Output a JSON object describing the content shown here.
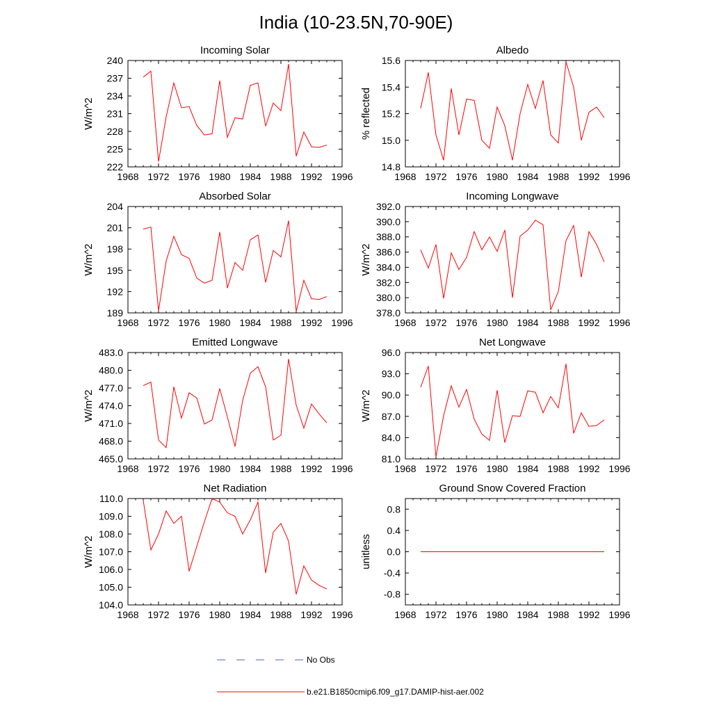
{
  "figure": {
    "title": "India (10-23.5N,70-90E)"
  },
  "colors": {
    "model": "#ff0000",
    "obs": "#4b5fbf",
    "axis": "#000000"
  },
  "legend": {
    "obs_label": "No Obs",
    "model_label": "b.e21.B1850cmip6.f09_g17.DAMIP-hist-aer.002"
  },
  "chart_data": [
    {
      "type": "line",
      "title": "Incoming Solar",
      "ylabel": "W/m^2",
      "xlim": [
        1968,
        1996
      ],
      "xticks": [
        "1968",
        "1972",
        "1976",
        "1980",
        "1984",
        "1988",
        "1992",
        "1996"
      ],
      "ylim": [
        222,
        240
      ],
      "yticks": [
        "222",
        "225",
        "228",
        "231",
        "234",
        "237",
        "240"
      ],
      "series": [
        {
          "x": [
            1970,
            1971,
            1972,
            1973,
            1974,
            1975,
            1976,
            1977,
            1978,
            1979,
            1980,
            1981,
            1982,
            1983,
            1984,
            1985,
            1986,
            1987,
            1988,
            1989,
            1990,
            1991,
            1992,
            1993,
            1994
          ],
          "y": [
            237.2,
            238.2,
            222.9,
            230.5,
            236.2,
            232.0,
            232.2,
            229.0,
            227.4,
            227.6,
            236.6,
            227.0,
            230.3,
            230.1,
            235.8,
            236.2,
            228.9,
            232.8,
            231.5,
            239.4,
            223.8,
            227.9,
            225.4,
            225.3,
            225.7
          ]
        }
      ]
    },
    {
      "type": "line",
      "title": "Albedo",
      "ylabel": "% reflected",
      "xlim": [
        1968,
        1996
      ],
      "xticks": [
        "1968",
        "1972",
        "1976",
        "1980",
        "1984",
        "1988",
        "1992",
        "1996"
      ],
      "ylim": [
        14.8,
        15.6
      ],
      "yticks": [
        "14.8",
        "15.0",
        "15.2",
        "15.4",
        "15.6"
      ],
      "series": [
        {
          "x": [
            1970,
            1971,
            1972,
            1973,
            1974,
            1975,
            1976,
            1977,
            1978,
            1979,
            1980,
            1981,
            1982,
            1983,
            1984,
            1985,
            1986,
            1987,
            1988,
            1989,
            1990,
            1991,
            1992,
            1993,
            1994
          ],
          "y": [
            15.24,
            15.51,
            15.04,
            14.85,
            15.39,
            15.04,
            15.31,
            15.3,
            15.0,
            14.94,
            15.25,
            15.11,
            14.85,
            15.2,
            15.42,
            15.24,
            15.45,
            15.04,
            14.98,
            15.59,
            15.4,
            15.0,
            15.21,
            15.25,
            15.17
          ]
        }
      ]
    },
    {
      "type": "line",
      "title": "Absorbed Solar",
      "ylabel": "W/m^2",
      "xlim": [
        1968,
        1996
      ],
      "xticks": [
        "1968",
        "1972",
        "1976",
        "1980",
        "1984",
        "1988",
        "1992",
        "1996"
      ],
      "ylim": [
        189,
        204
      ],
      "yticks": [
        "189",
        "192",
        "195",
        "198",
        "201",
        "204"
      ],
      "series": [
        {
          "x": [
            1970,
            1971,
            1972,
            1973,
            1974,
            1975,
            1976,
            1977,
            1978,
            1979,
            1980,
            1981,
            1982,
            1983,
            1984,
            1985,
            1986,
            1987,
            1988,
            1989,
            1990,
            1991,
            1992,
            1993,
            1994
          ],
          "y": [
            200.8,
            201.1,
            189.3,
            196.3,
            199.8,
            197.2,
            196.7,
            193.9,
            193.2,
            193.6,
            200.4,
            192.5,
            196.1,
            195.0,
            199.3,
            200.0,
            193.3,
            197.8,
            196.9,
            202.0,
            189.2,
            193.6,
            191.0,
            190.9,
            191.3
          ]
        }
      ]
    },
    {
      "type": "line",
      "title": "Incoming Longwave",
      "ylabel": "W/m^2",
      "xlim": [
        1968,
        1996
      ],
      "xticks": [
        "1968",
        "1972",
        "1976",
        "1980",
        "1984",
        "1988",
        "1992",
        "1996"
      ],
      "ylim": [
        378.0,
        392.0
      ],
      "yticks": [
        "378.0",
        "380.0",
        "382.0",
        "384.0",
        "386.0",
        "388.0",
        "390.0",
        "392.0"
      ],
      "series": [
        {
          "x": [
            1970,
            1971,
            1972,
            1973,
            1974,
            1975,
            1976,
            1977,
            1978,
            1979,
            1980,
            1981,
            1982,
            1983,
            1984,
            1985,
            1986,
            1987,
            1988,
            1989,
            1990,
            1991,
            1992,
            1993,
            1994
          ],
          "y": [
            386.3,
            383.9,
            387.0,
            379.9,
            385.9,
            383.7,
            385.3,
            388.7,
            386.3,
            388.0,
            386.1,
            388.9,
            380.0,
            388.1,
            388.9,
            390.2,
            389.6,
            378.4,
            380.8,
            387.5,
            389.5,
            382.7,
            388.7,
            387.0,
            384.7
          ]
        }
      ]
    },
    {
      "type": "line",
      "title": "Emitted Longwave",
      "ylabel": "W/m^2",
      "xlim": [
        1968,
        1996
      ],
      "xticks": [
        "1968",
        "1972",
        "1976",
        "1980",
        "1984",
        "1988",
        "1992",
        "1996"
      ],
      "ylim": [
        465.0,
        483.0
      ],
      "yticks": [
        "465.0",
        "468.0",
        "471.0",
        "474.0",
        "477.0",
        "480.0",
        "483.0"
      ],
      "series": [
        {
          "x": [
            1970,
            1971,
            1972,
            1973,
            1974,
            1975,
            1976,
            1977,
            1978,
            1979,
            1980,
            1981,
            1982,
            1983,
            1984,
            1985,
            1986,
            1987,
            1988,
            1989,
            1990,
            1991,
            1992,
            1993,
            1994
          ],
          "y": [
            477.4,
            478.0,
            468.2,
            466.9,
            477.2,
            471.9,
            476.2,
            475.3,
            470.9,
            471.6,
            476.9,
            472.1,
            467.1,
            474.9,
            479.5,
            480.6,
            477.2,
            468.2,
            469.0,
            481.9,
            474.1,
            470.2,
            474.3,
            472.6,
            471.1
          ]
        }
      ]
    },
    {
      "type": "line",
      "title": "Net Longwave",
      "ylabel": "W/m^2",
      "xlim": [
        1968,
        1996
      ],
      "xticks": [
        "1968",
        "1972",
        "1976",
        "1980",
        "1984",
        "1988",
        "1992",
        "1996"
      ],
      "ylim": [
        81.0,
        96.0
      ],
      "yticks": [
        "81.0",
        "84.0",
        "87.0",
        "90.0",
        "93.0",
        "96.0"
      ],
      "series": [
        {
          "x": [
            1970,
            1971,
            1972,
            1973,
            1974,
            1975,
            1976,
            1977,
            1978,
            1979,
            1980,
            1981,
            1982,
            1983,
            1984,
            1985,
            1986,
            1987,
            1988,
            1989,
            1990,
            1991,
            1992,
            1993,
            1994
          ],
          "y": [
            91.1,
            94.1,
            81.3,
            87.1,
            91.3,
            88.3,
            90.8,
            86.6,
            84.5,
            83.6,
            90.7,
            83.3,
            87.1,
            87.0,
            90.6,
            90.4,
            87.5,
            89.8,
            88.2,
            94.4,
            84.6,
            87.5,
            85.6,
            85.7,
            86.5
          ]
        }
      ]
    },
    {
      "type": "line",
      "title": "Net Radiation",
      "ylabel": "W/m^2",
      "xlim": [
        1968,
        1996
      ],
      "xticks": [
        "1968",
        "1972",
        "1976",
        "1980",
        "1984",
        "1988",
        "1992",
        "1996"
      ],
      "ylim": [
        104.0,
        110.0
      ],
      "yticks": [
        "104.0",
        "105.0",
        "106.0",
        "107.0",
        "108.0",
        "109.0",
        "110.0"
      ],
      "series": [
        {
          "x": [
            1970,
            1971,
            1972,
            1973,
            1974,
            1975,
            1976,
            1977,
            1978,
            1979,
            1980,
            1981,
            1982,
            1983,
            1984,
            1985,
            1986,
            1987,
            1988,
            1989,
            1990,
            1991,
            1992,
            1993,
            1994
          ],
          "y": [
            109.9,
            107.1,
            108.0,
            109.3,
            108.6,
            109.0,
            105.9,
            107.3,
            108.7,
            110.0,
            109.8,
            109.2,
            109.0,
            108.0,
            108.8,
            109.8,
            105.8,
            108.1,
            108.6,
            107.6,
            104.6,
            106.2,
            105.4,
            105.1,
            104.9
          ]
        }
      ]
    },
    {
      "type": "line",
      "title": "Ground Snow Covered Fraction",
      "ylabel": "unitless",
      "xlim": [
        1968,
        1996
      ],
      "xticks": [
        "1968",
        "1972",
        "1976",
        "1980",
        "1984",
        "1988",
        "1992",
        "1996"
      ],
      "ylim": [
        -1.0,
        1.0
      ],
      "yticks": [
        "-0.8",
        "-0.4",
        "0.0",
        "0.4",
        "0.8"
      ],
      "ytick_values": [
        -0.8,
        -0.4,
        0.0,
        0.4,
        0.8
      ],
      "series": [
        {
          "x": [
            1970,
            1971,
            1972,
            1973,
            1974,
            1975,
            1976,
            1977,
            1978,
            1979,
            1980,
            1981,
            1982,
            1983,
            1984,
            1985,
            1986,
            1987,
            1988,
            1989,
            1990,
            1991,
            1992,
            1993,
            1994
          ],
          "y": [
            0,
            0,
            0,
            0,
            0,
            0,
            0,
            0,
            0,
            0,
            0,
            0,
            0,
            0,
            0,
            0,
            0,
            0,
            0,
            0,
            0,
            0,
            0,
            0,
            0
          ]
        }
      ]
    }
  ]
}
